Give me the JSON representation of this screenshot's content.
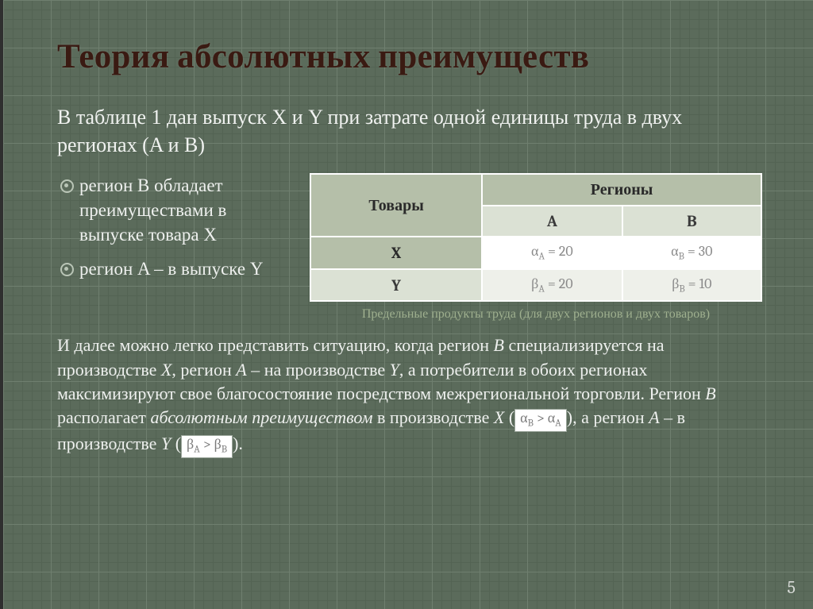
{
  "title": "Теория абсолютных преимуществ",
  "intro": "В таблице 1 дан выпуск X и Y при затрате одной единицы труда в двух регионах (A и B)",
  "bullets": [
    "регион B обладает преимуществами в выпуске товара X",
    "регион A – в выпуске Y"
  ],
  "table": {
    "header_goods": "Товары",
    "header_regions": "Регионы",
    "col_a": "A",
    "col_b": "B",
    "row_labels": [
      "X",
      "Y"
    ],
    "cells": {
      "xa": "α<sub>A</sub> = 20",
      "xb": "α<sub>B</sub> = 30",
      "ya": "β<sub>A</sub> = 20",
      "yb": "β<sub>B</sub> = 10"
    },
    "caption": "Предельные продукты труда (для двух регионов и двух товаров)",
    "colors": {
      "header_dark": "#b5bfa9",
      "header_light": "#dbe1d4",
      "row_light": "#eef0ea",
      "border": "#ffffff"
    }
  },
  "body_html": "И далее можно легко представить ситуацию, когда регион <span class=\"italic\">B</span> специализируется на производстве <span class=\"italic\">X</span>, регион <span class=\"italic\">A</span> – на производстве <span class=\"italic\">Y</span>, а потребители в обоих регионах максимизируют свое благосостояние посредством межрегиональной торговли. Регион <span class=\"italic\">B</span> располагает <span class=\"italic\">абсолютным преимуществом</span> в производстве <span class=\"italic\">X</span> (<span class=\"inline-formula\">α<sub>B</sub> &gt; α<sub>A</sub></span>), а регион <span class=\"italic\">A</span> – в производстве <span class=\"italic\">Y</span> (<span class=\"inline-formula\">β<sub>A</sub> &gt; β<sub>B</sub></span>).",
  "page_number": "5",
  "styling": {
    "background": "#5b6b5b",
    "grid_major": "#6f7f6f",
    "grid_minor": "#536353",
    "title_color": "#3a1a12",
    "text_color": "#eef0ee",
    "caption_color": "#9fb08f",
    "title_fontsize": 43,
    "intro_fontsize": 26,
    "bullet_fontsize": 23,
    "body_fontsize": 22
  }
}
